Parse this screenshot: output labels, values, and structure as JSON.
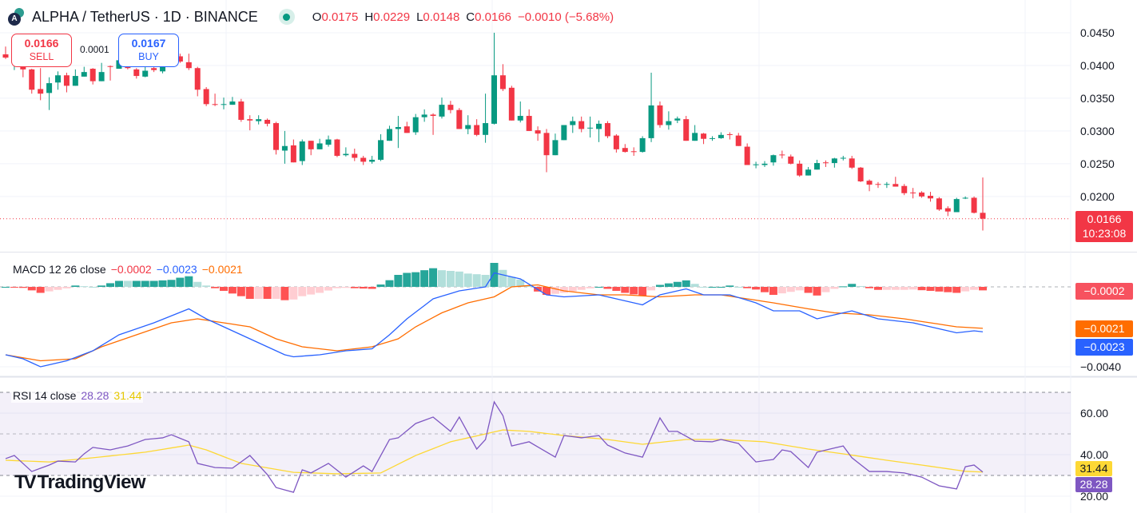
{
  "header": {
    "symbol": "ALPHA / TetherUS · 1D · BINANCE",
    "market_status": "open",
    "ohlc": {
      "o_label": "O",
      "o": "0.0175",
      "h_label": "H",
      "h": "0.0229",
      "l_label": "L",
      "l": "0.0148",
      "c_label": "C",
      "c": "0.0166",
      "change": "−0.0010 (−5.68%)"
    }
  },
  "trade": {
    "sell_price": "0.0166",
    "sell_label": "SELL",
    "spread": "0.0001",
    "buy_price": "0.0167",
    "buy_label": "BUY"
  },
  "price_label": {
    "price": "0.0166",
    "countdown": "10:23:08"
  },
  "macd_legend": {
    "name": "MACD 12 26 close",
    "hist": "−0.0002",
    "macd": "−0.0023",
    "signal": "−0.0021"
  },
  "macd_labels": {
    "hist": "−0.0002",
    "signal": "−0.0021",
    "macd": "−0.0023"
  },
  "rsi_legend": {
    "name": "RSI 14 close",
    "rsi": "28.28",
    "ma": "31.44"
  },
  "rsi_labels": {
    "ma": "31.44",
    "rsi": "28.28"
  },
  "branding": "TradingView",
  "colors": {
    "up": "#089981",
    "down": "#f23645",
    "macd": "#2962ff",
    "signal": "#ff6d00",
    "rsi": "#7e57c2",
    "rsi_ma": "#fdd835",
    "hist_up": "#26a69a",
    "hist_up_fading": "#b2dfdb",
    "hist_down": "#ff5252",
    "hist_down_fading": "#ffcdd2"
  },
  "chart_data": [
    {
      "type": "candlestick",
      "title": "ALPHA / TetherUS · 1D · BINANCE",
      "ylim": [
        0.014,
        0.048
      ],
      "yticks": [
        "0.0450",
        "0.0400",
        "0.0350",
        "0.0300",
        "0.0250",
        "0.0200"
      ],
      "ytick_values": [
        0.045,
        0.04,
        0.035,
        0.03,
        0.025,
        0.02
      ],
      "last_price": 0.0166,
      "grid": true,
      "ohlc": [
        [
          0.0417,
          0.0429,
          0.041,
          0.0412
        ],
        [
          0.0412,
          0.0425,
          0.0393,
          0.042
        ],
        [
          0.0399,
          0.0404,
          0.0382,
          0.0394
        ],
        [
          0.0394,
          0.0395,
          0.0357,
          0.0363
        ],
        [
          0.0364,
          0.0396,
          0.0347,
          0.0357
        ],
        [
          0.0358,
          0.0382,
          0.0332,
          0.0373
        ],
        [
          0.0374,
          0.0391,
          0.0363,
          0.0385
        ],
        [
          0.0385,
          0.0389,
          0.0359,
          0.0369
        ],
        [
          0.0369,
          0.0394,
          0.0369,
          0.0384
        ],
        [
          0.0383,
          0.0398,
          0.0383,
          0.039
        ],
        [
          0.0395,
          0.0396,
          0.0371,
          0.0376
        ],
        [
          0.0376,
          0.0404,
          0.0376,
          0.039
        ],
        [
          0.0399,
          0.04,
          0.0377,
          0.0398
        ],
        [
          0.0395,
          0.041,
          0.0395,
          0.0408
        ],
        [
          0.04,
          0.0402,
          0.0394,
          0.0396
        ],
        [
          0.0394,
          0.0396,
          0.038,
          0.0384
        ],
        [
          0.0383,
          0.0405,
          0.0382,
          0.0392
        ],
        [
          0.0396,
          0.04,
          0.039,
          0.0393
        ],
        [
          0.0391,
          0.0403,
          0.0388,
          0.0399
        ],
        [
          0.04,
          0.041,
          0.0398,
          0.0405
        ],
        [
          0.0414,
          0.0418,
          0.0404,
          0.0406
        ],
        [
          0.0405,
          0.0418,
          0.0393,
          0.0396
        ],
        [
          0.0396,
          0.0398,
          0.0353,
          0.0363
        ],
        [
          0.0364,
          0.0367,
          0.0338,
          0.0341
        ],
        [
          0.0341,
          0.0357,
          0.0338,
          0.034
        ],
        [
          0.034,
          0.0351,
          0.0333,
          0.0341
        ],
        [
          0.034,
          0.0352,
          0.034,
          0.0345
        ],
        [
          0.0345,
          0.0349,
          0.0314,
          0.0317
        ],
        [
          0.0318,
          0.0324,
          0.0301,
          0.0316
        ],
        [
          0.0315,
          0.0324,
          0.031,
          0.0318
        ],
        [
          0.0317,
          0.0319,
          0.0307,
          0.0311
        ],
        [
          0.0312,
          0.0314,
          0.0264,
          0.0271
        ],
        [
          0.027,
          0.03,
          0.025,
          0.0277
        ],
        [
          0.0278,
          0.0287,
          0.0252,
          0.0252
        ],
        [
          0.0254,
          0.0287,
          0.0248,
          0.0284
        ],
        [
          0.0285,
          0.0285,
          0.0263,
          0.0272
        ],
        [
          0.0272,
          0.0288,
          0.0272,
          0.0281
        ],
        [
          0.0279,
          0.0293,
          0.0276,
          0.0287
        ],
        [
          0.0287,
          0.0288,
          0.026,
          0.0262
        ],
        [
          0.0263,
          0.0275,
          0.0261,
          0.0265
        ],
        [
          0.0265,
          0.0273,
          0.0254,
          0.0259
        ],
        [
          0.0259,
          0.0262,
          0.0248,
          0.0253
        ],
        [
          0.0253,
          0.0262,
          0.025,
          0.0256
        ],
        [
          0.0256,
          0.0295,
          0.0254,
          0.0286
        ],
        [
          0.0285,
          0.0308,
          0.0285,
          0.0303
        ],
        [
          0.0303,
          0.0323,
          0.0274,
          0.0306
        ],
        [
          0.0307,
          0.0314,
          0.0297,
          0.0297
        ],
        [
          0.0298,
          0.0326,
          0.0294,
          0.0321
        ],
        [
          0.0321,
          0.0333,
          0.0314,
          0.0325
        ],
        [
          0.0325,
          0.0327,
          0.0294,
          0.0323
        ],
        [
          0.0322,
          0.0351,
          0.0319,
          0.034
        ],
        [
          0.034,
          0.0346,
          0.0327,
          0.0332
        ],
        [
          0.0332,
          0.0335,
          0.0303,
          0.0303
        ],
        [
          0.0303,
          0.0324,
          0.0295,
          0.0309
        ],
        [
          0.0309,
          0.0318,
          0.0292,
          0.0294
        ],
        [
          0.0294,
          0.0357,
          0.0282,
          0.0312
        ],
        [
          0.0311,
          0.045,
          0.031,
          0.0385
        ],
        [
          0.0385,
          0.0402,
          0.0361,
          0.0364
        ],
        [
          0.0366,
          0.0369,
          0.0316,
          0.0316
        ],
        [
          0.0316,
          0.0345,
          0.0313,
          0.0323
        ],
        [
          0.0323,
          0.0333,
          0.03,
          0.03
        ],
        [
          0.0301,
          0.0307,
          0.0285,
          0.0296
        ],
        [
          0.0297,
          0.0303,
          0.0237,
          0.0263
        ],
        [
          0.0263,
          0.0296,
          0.0263,
          0.0286
        ],
        [
          0.0286,
          0.0309,
          0.0286,
          0.0309
        ],
        [
          0.0309,
          0.0322,
          0.0297,
          0.0315
        ],
        [
          0.0315,
          0.0322,
          0.0298,
          0.0303
        ],
        [
          0.0304,
          0.0322,
          0.029,
          0.0305
        ],
        [
          0.0303,
          0.0316,
          0.0283,
          0.0311
        ],
        [
          0.0312,
          0.0315,
          0.0289,
          0.0292
        ],
        [
          0.0293,
          0.0295,
          0.0267,
          0.0272
        ],
        [
          0.0274,
          0.028,
          0.0267,
          0.0268
        ],
        [
          0.0269,
          0.0275,
          0.0262,
          0.0268
        ],
        [
          0.0268,
          0.0292,
          0.0267,
          0.0289
        ],
        [
          0.0289,
          0.0389,
          0.0283,
          0.0339
        ],
        [
          0.0339,
          0.0345,
          0.0305,
          0.0309
        ],
        [
          0.0309,
          0.033,
          0.0302,
          0.0315
        ],
        [
          0.0316,
          0.0322,
          0.0312,
          0.0319
        ],
        [
          0.0318,
          0.0323,
          0.0285,
          0.0285
        ],
        [
          0.0285,
          0.0309,
          0.0285,
          0.0297
        ],
        [
          0.0296,
          0.0297,
          0.028,
          0.0288
        ],
        [
          0.0288,
          0.0292,
          0.0285,
          0.0289
        ],
        [
          0.0289,
          0.0298,
          0.0288,
          0.0294
        ],
        [
          0.0295,
          0.0298,
          0.0287,
          0.0294
        ],
        [
          0.0293,
          0.0297,
          0.0277,
          0.0277
        ],
        [
          0.0276,
          0.0281,
          0.0248,
          0.0248
        ],
        [
          0.0248,
          0.0253,
          0.0243,
          0.0249
        ],
        [
          0.0248,
          0.0254,
          0.0245,
          0.025
        ],
        [
          0.0252,
          0.0264,
          0.0247,
          0.0263
        ],
        [
          0.0264,
          0.027,
          0.0258,
          0.0263
        ],
        [
          0.0261,
          0.0264,
          0.0249,
          0.025
        ],
        [
          0.025,
          0.0255,
          0.023,
          0.0232
        ],
        [
          0.0232,
          0.0245,
          0.0232,
          0.0241
        ],
        [
          0.0241,
          0.0256,
          0.0241,
          0.0251
        ],
        [
          0.0252,
          0.0255,
          0.0245,
          0.0251
        ],
        [
          0.0251,
          0.0259,
          0.0244,
          0.0258
        ],
        [
          0.0258,
          0.0262,
          0.0255,
          0.0259
        ],
        [
          0.0258,
          0.0262,
          0.0242,
          0.0244
        ],
        [
          0.0244,
          0.0245,
          0.0222,
          0.0223
        ],
        [
          0.0224,
          0.0226,
          0.0208,
          0.0218
        ],
        [
          0.0219,
          0.0222,
          0.0213,
          0.0218
        ],
        [
          0.0218,
          0.0222,
          0.0213,
          0.0219
        ],
        [
          0.0219,
          0.023,
          0.0215,
          0.0215
        ],
        [
          0.0216,
          0.0219,
          0.0202,
          0.0205
        ],
        [
          0.0206,
          0.0213,
          0.0197,
          0.0205
        ],
        [
          0.0206,
          0.0208,
          0.0198,
          0.02
        ],
        [
          0.0201,
          0.0207,
          0.0192,
          0.0197
        ],
        [
          0.0197,
          0.0199,
          0.0178,
          0.018
        ],
        [
          0.0182,
          0.0185,
          0.017,
          0.0177
        ],
        [
          0.0176,
          0.0198,
          0.0176,
          0.0196
        ],
        [
          0.0197,
          0.02,
          0.0196,
          0.0198
        ],
        [
          0.0198,
          0.02,
          0.0174,
          0.0175
        ],
        [
          0.0175,
          0.0229,
          0.0148,
          0.0166
        ]
      ]
    },
    {
      "type": "line",
      "title": "MACD 12 26 close",
      "ylim": [
        -0.0044,
        0.0017
      ],
      "yticks": [
        "−0.0040"
      ],
      "ytick_values": [
        -0.004
      ],
      "series": [
        {
          "name": "MACD",
          "bar": [
            0,
            2,
            4,
            7,
            10,
            13,
            17,
            21,
            23,
            26,
            29,
            32,
            33,
            36,
            39,
            42,
            44,
            46,
            49,
            52,
            55,
            56,
            59,
            62,
            64,
            68,
            70,
            73,
            75,
            78,
            80,
            83,
            86,
            88,
            91,
            93,
            96,
            97,
            100,
            104,
            106,
            109,
            111,
            113
          ],
          "values": [
            -0.0034,
            -0.0036,
            -0.004,
            -0.0037,
            -0.0032,
            -0.0024,
            -0.0018,
            -0.0011,
            -0.0016,
            -0.0022,
            -0.0028,
            -0.0034,
            -0.0035,
            -0.0034,
            -0.0032,
            -0.0031,
            -0.0024,
            -0.0016,
            -0.0006,
            -0.0002,
            0.0,
            0.0007,
            0.0004,
            -0.0004,
            -0.0005,
            -0.0004,
            -0.0006,
            -0.0009,
            -0.0004,
            -0.0001,
            -0.0004,
            -0.0004,
            -0.0008,
            -0.0012,
            -0.0012,
            -0.0016,
            -0.0013,
            -0.0012,
            -0.0016,
            -0.0018,
            -0.002,
            -0.0023,
            -0.0022,
            -0.0023
          ]
        },
        {
          "name": "Signal",
          "bar": [
            0,
            4,
            8,
            11,
            15,
            19,
            22,
            25,
            28,
            31,
            34,
            38,
            42,
            45,
            47,
            50,
            53,
            56,
            58,
            61,
            64,
            68,
            71,
            75,
            79,
            82,
            85,
            88,
            92,
            95,
            99,
            103,
            106,
            109,
            113
          ],
          "values": [
            -0.0034,
            -0.0037,
            -0.0036,
            -0.003,
            -0.0024,
            -0.0018,
            -0.0016,
            -0.0018,
            -0.002,
            -0.0026,
            -0.003,
            -0.0032,
            -0.003,
            -0.0026,
            -0.002,
            -0.0013,
            -0.0008,
            -0.0005,
            0.0,
            0.0001,
            -0.0002,
            -0.0004,
            -0.0004,
            -0.0005,
            -0.0004,
            -0.0004,
            -0.0006,
            -0.0008,
            -0.0011,
            -0.0013,
            -0.0014,
            -0.0016,
            -0.0018,
            -0.002,
            -0.0021
          ]
        }
      ]
    },
    {
      "type": "line",
      "title": "RSI 14 close",
      "ylim": [
        17.5,
        77
      ],
      "yticks": [
        "60.00",
        "40.00",
        "20.00"
      ],
      "ytick_values": [
        60,
        40,
        20
      ],
      "bands": [
        70,
        50,
        30
      ],
      "series": [
        {
          "name": "RSI",
          "bar": [
            0,
            1,
            3,
            5,
            6,
            8,
            9,
            10,
            12,
            14,
            16,
            18,
            19,
            21,
            22,
            24,
            26,
            28,
            30,
            31,
            33,
            34,
            35,
            37,
            39,
            41,
            42,
            44,
            45,
            47,
            49,
            51,
            52,
            54,
            55,
            56,
            57,
            58,
            60,
            63,
            64,
            66,
            68,
            69,
            71,
            73,
            75,
            76,
            77,
            79,
            81,
            82,
            84,
            86,
            88,
            89,
            90,
            92,
            93,
            96,
            97,
            99,
            101,
            103,
            105,
            107,
            109,
            110,
            111,
            113
          ],
          "values": [
            38.1,
            39.6,
            31.9,
            35.0,
            36.9,
            36.5,
            40.4,
            43.5,
            42.3,
            44.2,
            47.3,
            48.1,
            49.6,
            46.2,
            35.8,
            33.8,
            33.5,
            39.6,
            30.4,
            24.2,
            21.9,
            32.7,
            31.2,
            35.8,
            29.2,
            34.6,
            31.9,
            47.3,
            48.1,
            55.0,
            58.1,
            51.2,
            58.1,
            42.7,
            47.3,
            65.4,
            58.8,
            44.2,
            46.2,
            38.8,
            49.2,
            48.1,
            49.2,
            44.6,
            40.8,
            38.8,
            57.7,
            51.2,
            51.2,
            46.5,
            46.2,
            47.3,
            45.4,
            36.5,
            37.7,
            42.3,
            41.5,
            33.8,
            41.2,
            44.2,
            38.5,
            31.9,
            31.9,
            31.2,
            29.2,
            25.0,
            23.5,
            34.2,
            35.0,
            28.28
          ]
        },
        {
          "name": "RSI-based MA",
          "bar": [
            0,
            5,
            10,
            16,
            21,
            23,
            27,
            33,
            38,
            43,
            47,
            51,
            55,
            57,
            60,
            64,
            69,
            73,
            78,
            82,
            87,
            92,
            96,
            101,
            105,
            110,
            113
          ],
          "values": [
            37.3,
            36.5,
            38.5,
            41.2,
            44.6,
            42.3,
            35.8,
            31.5,
            30.8,
            31.2,
            39.6,
            46.2,
            50.0,
            51.9,
            51.2,
            49.2,
            47.3,
            45.0,
            47.3,
            47.3,
            46.2,
            42.7,
            40.4,
            37.3,
            35.0,
            32.0,
            31.44
          ]
        }
      ]
    }
  ]
}
